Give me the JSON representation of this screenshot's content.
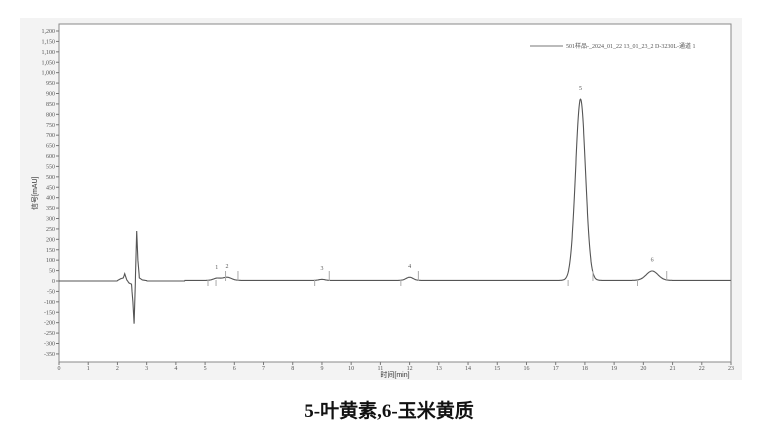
{
  "chart_data": {
    "type": "line",
    "xlabel": "时间[min]",
    "ylabel": "信号[mAU]",
    "xlim": [
      0,
      23
    ],
    "ylim": [
      -350,
      1200
    ],
    "xticks": [
      0,
      1,
      2,
      3,
      4,
      5,
      6,
      7,
      8,
      9,
      10,
      11,
      12,
      13,
      14,
      15,
      16,
      17,
      18,
      19,
      20,
      21,
      22,
      23
    ],
    "yticks": [
      -350,
      -300,
      -250,
      -200,
      -150,
      -100,
      -50,
      0,
      50,
      100,
      150,
      200,
      250,
      300,
      350,
      400,
      450,
      500,
      550,
      600,
      650,
      700,
      750,
      800,
      850,
      900,
      950,
      1000,
      1050,
      1100,
      1150,
      1200
    ],
    "grid": false,
    "legend": {
      "position": "top-right",
      "entries": [
        "501样品-_2024_01_22 13_01_23_2 D-3230L-通道 1"
      ]
    },
    "series": [
      {
        "name": "501样品-_2024_01_22 13_01_23_2 D-3230L-通道 1",
        "peaks": [
          {
            "label": "1",
            "time": 5.4,
            "height": 10,
            "width": 0.12
          },
          {
            "label": "2",
            "time": 5.75,
            "height": 15,
            "width": 0.15
          },
          {
            "label": "3",
            "time": 9.0,
            "height": 5,
            "width": 0.1
          },
          {
            "label": "4",
            "time": 12.0,
            "height": 15,
            "width": 0.12
          },
          {
            "label": "5",
            "time": 17.85,
            "height": 870,
            "width": 0.17
          },
          {
            "label": "6",
            "time": 20.3,
            "height": 45,
            "width": 0.2
          }
        ],
        "disturbance": [
          [
            2.0,
            2
          ],
          [
            2.1,
            10
          ],
          [
            2.2,
            15
          ],
          [
            2.25,
            35
          ],
          [
            2.32,
            5
          ],
          [
            2.4,
            -10
          ],
          [
            2.48,
            -15
          ],
          [
            2.53,
            -100
          ],
          [
            2.57,
            -205
          ],
          [
            2.62,
            30
          ],
          [
            2.66,
            240
          ],
          [
            2.7,
            100
          ],
          [
            2.75,
            15
          ],
          [
            2.85,
            5
          ],
          [
            3.0,
            2
          ]
        ]
      }
    ]
  },
  "caption": "5-叶黄素,6-玉米黄质"
}
